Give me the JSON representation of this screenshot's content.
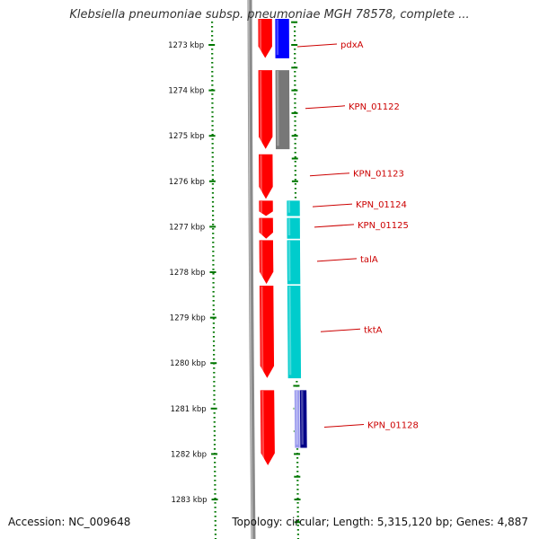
{
  "title": "Klebsiella pneumoniae subsp. pneumoniae MGH 78578, complete ...",
  "footer": {
    "accession": "Accession: NC_009648",
    "topology": "Topology: circular; Length: 5,315,120 bp; Genes: 4,887"
  },
  "colors": {
    "forward_cds": "#ff0000",
    "reverse_cds": "#0000ff",
    "reverse_cds_alt": "#777777",
    "cyan_cds": "#00cccc",
    "navy_cds": "#000088",
    "lavender_cds": "#9999ee",
    "backbone": "#8a8a8a",
    "gc_dots": "#007700",
    "label_text": "#cc0000",
    "tick_text": "#111111"
  },
  "ruler": {
    "unit": "kbp",
    "ticks": [
      {
        "kbp": 1273,
        "label": "1273 kbp"
      },
      {
        "kbp": 1274,
        "label": "1274 kbp"
      },
      {
        "kbp": 1275,
        "label": "1275 kbp"
      },
      {
        "kbp": 1276,
        "label": "1276 kbp"
      },
      {
        "kbp": 1277,
        "label": "1277 kbp"
      },
      {
        "kbp": 1278,
        "label": "1278 kbp"
      },
      {
        "kbp": 1279,
        "label": "1279 kbp"
      },
      {
        "kbp": 1280,
        "label": "1280 kbp"
      },
      {
        "kbp": 1281,
        "label": "1281 kbp"
      },
      {
        "kbp": 1282,
        "label": "1282 kbp"
      },
      {
        "kbp": 1283,
        "label": "1283 kbp"
      }
    ]
  },
  "genes": [
    {
      "start_kbp": 1272.42,
      "end_kbp": 1273.3,
      "strand": "+",
      "color": "forward_cds"
    },
    {
      "start_kbp": 1272.42,
      "end_kbp": 1273.3,
      "strand": "-",
      "color": "reverse_cds"
    },
    {
      "start_kbp": 1273.55,
      "end_kbp": 1275.3,
      "strand": "+",
      "color": "forward_cds"
    },
    {
      "start_kbp": 1273.55,
      "end_kbp": 1275.3,
      "strand": "-",
      "color": "reverse_cds_alt"
    },
    {
      "start_kbp": 1275.4,
      "end_kbp": 1276.4,
      "strand": "+",
      "color": "forward_cds"
    },
    {
      "start_kbp": 1276.42,
      "end_kbp": 1276.77,
      "strand": "+",
      "color": "forward_cds"
    },
    {
      "start_kbp": 1276.42,
      "end_kbp": 1276.77,
      "strand": "-",
      "color": "cyan_cds"
    },
    {
      "start_kbp": 1276.8,
      "end_kbp": 1277.27,
      "strand": "+",
      "color": "forward_cds"
    },
    {
      "start_kbp": 1276.8,
      "end_kbp": 1277.27,
      "strand": "-",
      "color": "cyan_cds"
    },
    {
      "start_kbp": 1277.29,
      "end_kbp": 1278.27,
      "strand": "+",
      "color": "forward_cds"
    },
    {
      "start_kbp": 1277.29,
      "end_kbp": 1278.27,
      "strand": "-",
      "color": "cyan_cds"
    },
    {
      "start_kbp": 1278.29,
      "end_kbp": 1280.34,
      "strand": "+",
      "color": "forward_cds"
    },
    {
      "start_kbp": 1278.29,
      "end_kbp": 1280.34,
      "strand": "-",
      "color": "cyan_cds"
    },
    {
      "start_kbp": 1280.59,
      "end_kbp": 1282.26,
      "strand": "+",
      "color": "forward_cds"
    },
    {
      "start_kbp": 1280.59,
      "end_kbp": 1281.87,
      "strand": "-",
      "color": "lavender_cds"
    },
    {
      "start_kbp": 1280.59,
      "end_kbp": 1281.87,
      "strand": "-",
      "color": "navy_cds"
    }
  ],
  "labels": [
    {
      "text": "pdxA",
      "kbp": 1272.98
    },
    {
      "text": "KPN_01122",
      "kbp": 1274.34
    },
    {
      "text": "KPN_01123",
      "kbp": 1275.82
    },
    {
      "text": "KPN_01124",
      "kbp": 1276.5
    },
    {
      "text": "KPN_01125",
      "kbp": 1276.95
    },
    {
      "text": "talA",
      "kbp": 1277.7
    },
    {
      "text": "tktA",
      "kbp": 1279.25
    },
    {
      "text": "KPN_01128",
      "kbp": 1281.35
    }
  ]
}
